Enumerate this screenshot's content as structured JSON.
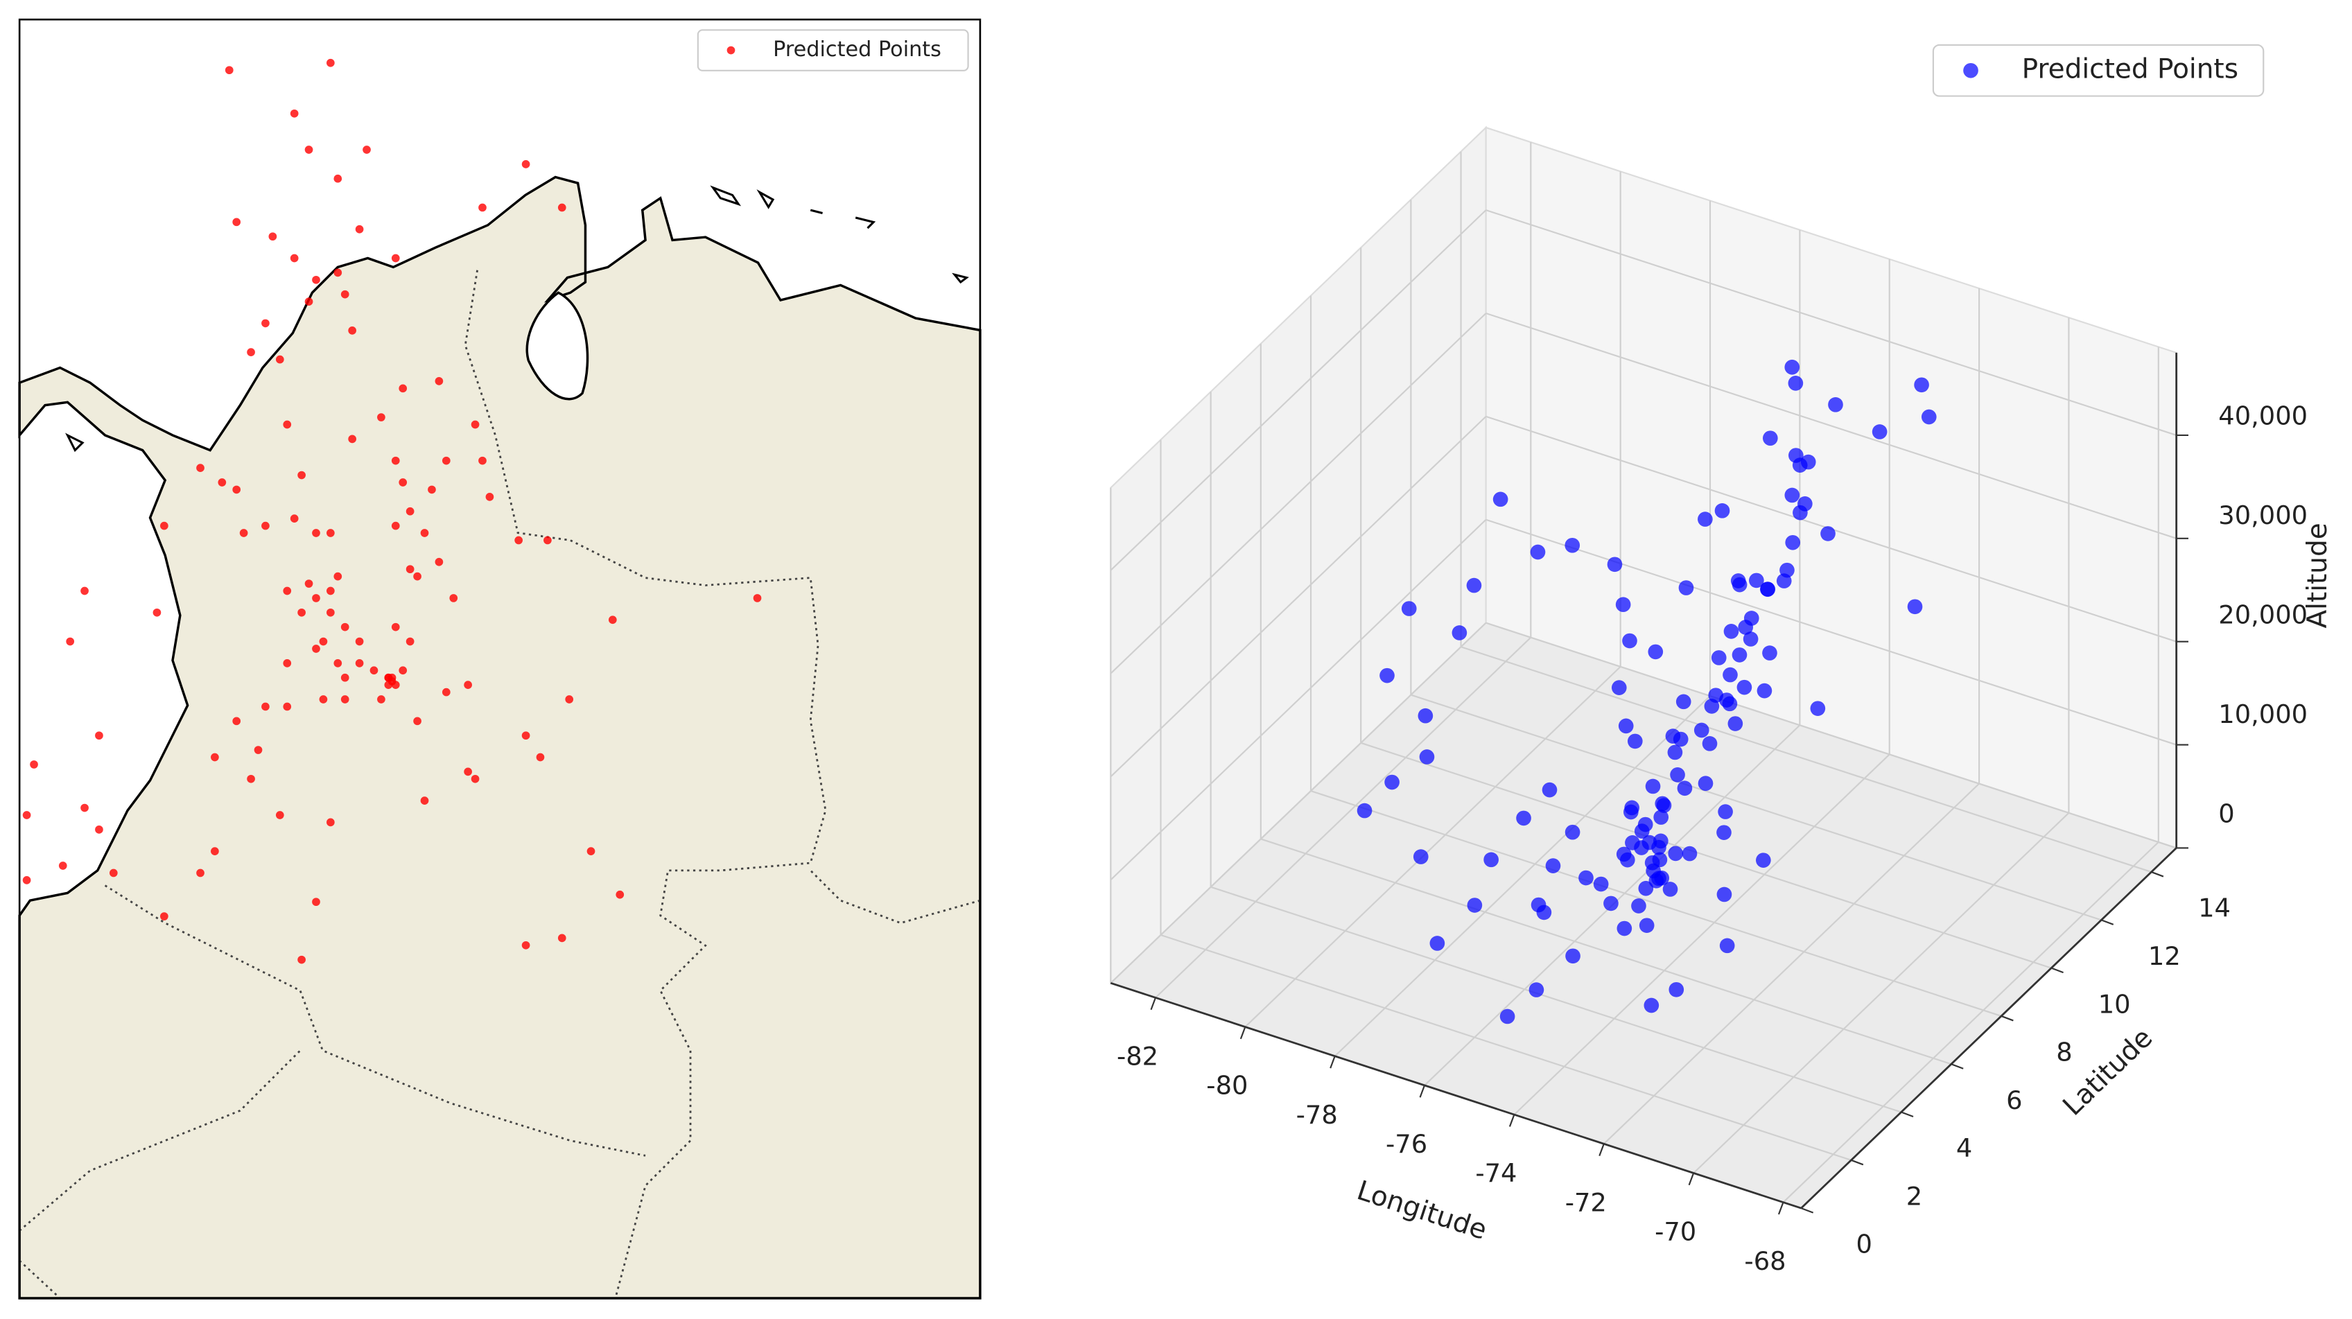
{
  "chart_data": [
    {
      "type": "map",
      "xlim": [
        -79,
        -65.72
      ],
      "ylim": [
        -2.98,
        14.7
      ],
      "legend": "upper right",
      "series": [
        {
          "name": "Predicted Points",
          "color": "#ff0000",
          "x": [
            -76.1,
            -74.7,
            -75.2,
            -75.0,
            -74.2,
            -74.6,
            -76.0,
            -75.5,
            -75.2,
            -74.3,
            -72.0,
            -72.6,
            -71.5,
            -74.6,
            -74.9,
            -75.0,
            -74.5,
            -74.4,
            -75.6,
            -75.8,
            -75.4,
            -73.8,
            -73.7,
            -73.2,
            -72.7,
            -75.3,
            -74.4,
            -74.0,
            -73.8,
            -73.1,
            -72.6,
            -76.5,
            -76.2,
            -75.1,
            -76.0,
            -73.7,
            -73.3,
            -73.6,
            -72.5,
            -77.0,
            -75.9,
            -75.6,
            -75.2,
            -74.9,
            -74.7,
            -73.8,
            -73.4,
            -72.1,
            -71.7,
            -73.2,
            -73.6,
            -73.5,
            -74.6,
            -75.0,
            -74.9,
            -74.7,
            -75.1,
            -74.7,
            -74.5,
            -74.8,
            -74.3,
            -75.3,
            -74.9,
            -74.6,
            -74.3,
            -74.5,
            -73.9,
            -74.1,
            -73.8,
            -73.7,
            -73.6,
            -73.0,
            -74.0,
            -74.5,
            -74.8,
            -73.9,
            -78.1,
            -78.3,
            -77.1,
            -75.3,
            -70.8,
            -68.8,
            -71.4,
            -73.5,
            -73.1,
            -72.8,
            -75.3,
            -75.6,
            -76.0,
            -76.3,
            -75.7,
            -75.8,
            -72.0,
            -71.8,
            -72.8,
            -72.7,
            -73.4,
            -74.7,
            -75.4,
            -76.3,
            -76.5,
            -78.8,
            -78.9,
            -78.1,
            -77.9,
            -77.9,
            -78.4,
            -78.9,
            -77.7,
            -77.0,
            -74.9,
            -71.1,
            -70.7,
            -72.0,
            -71.5,
            -75.1,
            -73.85,
            -73.8,
            -73.9,
            -73.85
          ],
          "values": [
            14.0,
            14.1,
            13.4,
            12.9,
            12.9,
            12.5,
            11.9,
            11.7,
            11.4,
            11.8,
            12.7,
            12.1,
            12.1,
            11.2,
            11.1,
            10.8,
            10.9,
            10.4,
            10.5,
            10.1,
            10.0,
            11.4,
            9.6,
            9.7,
            9.1,
            9.1,
            8.9,
            9.2,
            8.6,
            8.6,
            8.6,
            8.5,
            8.3,
            8.4,
            8.2,
            8.3,
            8.2,
            7.9,
            8.1,
            7.7,
            7.6,
            7.7,
            7.8,
            7.6,
            7.6,
            7.7,
            7.6,
            7.5,
            7.5,
            7.2,
            7.1,
            7.0,
            7.0,
            6.9,
            6.7,
            6.8,
            6.5,
            6.5,
            6.3,
            6.1,
            6.1,
            5.8,
            6.0,
            5.8,
            5.8,
            5.6,
            5.6,
            5.7,
            6.3,
            5.7,
            6.1,
            6.7,
            5.3,
            5.3,
            5.3,
            5.5,
            6.8,
            6.1,
            6.5,
            6.8,
            6.4,
            6.7,
            5.3,
            5.0,
            5.4,
            5.5,
            5.2,
            5.2,
            5.0,
            4.5,
            4.6,
            4.2,
            4.8,
            4.5,
            4.3,
            4.2,
            3.9,
            3.6,
            3.7,
            3.2,
            2.9,
            4.4,
            3.7,
            3.8,
            4.8,
            3.5,
            3.0,
            2.8,
            2.9,
            2.3,
            2.5,
            3.2,
            2.6,
            1.9,
            2.0,
            1.7,
            5.55,
            5.5,
            5.6,
            5.6
          ]
        }
      ]
    },
    {
      "type": "scatter3d",
      "xlabel": "Longitude",
      "ylabel": "Latitude",
      "zlabel": "Altitude",
      "xlim": [
        -83,
        -67.6
      ],
      "xticks": [
        -82,
        -80,
        -78,
        -76,
        -74,
        -72,
        -70,
        -68
      ],
      "ylim": [
        0,
        15
      ],
      "yticks": [
        0,
        2,
        4,
        6,
        8,
        10,
        12,
        14
      ],
      "zlim": [
        0,
        48000
      ],
      "zticks": [
        0,
        {
          "value": 10000,
          "label": "10,000"
        },
        {
          "value": 20000,
          "label": "20,000"
        },
        {
          "value": 30000,
          "label": "30,000"
        },
        {
          "value": 40000,
          "label": "40,000"
        }
      ],
      "grid": true,
      "legend": "upper right",
      "series": [
        {
          "name": "Predicted Points",
          "color": "#0000ff",
          "x": [
            -76.1,
            -74.7,
            -75.2,
            -75.0,
            -74.2,
            -74.6,
            -76.0,
            -75.5,
            -75.2,
            -74.3,
            -72.0,
            -72.6,
            -71.5,
            -74.6,
            -74.9,
            -75.0,
            -74.5,
            -74.4,
            -75.6,
            -75.8,
            -75.4,
            -73.8,
            -73.7,
            -73.2,
            -72.7,
            -75.3,
            -74.4,
            -74.0,
            -73.8,
            -73.1,
            -72.6,
            -76.5,
            -76.2,
            -75.1,
            -76.0,
            -73.7,
            -73.3,
            -73.6,
            -72.5,
            -77.0,
            -75.9,
            -75.6,
            -75.2,
            -74.9,
            -74.7,
            -73.8,
            -73.4,
            -72.1,
            -71.7,
            -73.2,
            -73.6,
            -73.5,
            -74.6,
            -75.0,
            -74.9,
            -74.7,
            -75.1,
            -74.7,
            -74.5,
            -74.8,
            -74.3,
            -75.3,
            -74.9,
            -74.6,
            -74.3,
            -74.5,
            -73.9,
            -74.1,
            -73.8,
            -73.7,
            -73.6,
            -73.0,
            -74.0,
            -74.5,
            -74.8,
            -73.9,
            -78.1,
            -78.3,
            -77.1,
            -75.3,
            -70.8,
            -68.8,
            -71.4,
            -73.5,
            -73.1,
            -72.8,
            -75.3,
            -75.6,
            -76.0,
            -76.3,
            -75.7,
            -75.8,
            -72.0,
            -71.8,
            -72.8,
            -72.7,
            -73.4,
            -74.7,
            -75.4,
            -76.3,
            -76.5,
            -78.8,
            -78.9,
            -78.1,
            -77.9,
            -77.9,
            -78.4,
            -78.9,
            -77.7,
            -77.0,
            -74.9,
            -71.1,
            -70.7,
            -72.0,
            -71.5,
            -75.1,
            -73.85,
            -73.8,
            -73.9,
            -73.85
          ],
          "y": [
            14.0,
            14.1,
            13.4,
            12.9,
            12.9,
            12.5,
            11.9,
            11.7,
            11.4,
            11.8,
            12.7,
            12.1,
            12.1,
            11.2,
            11.1,
            10.8,
            10.9,
            10.4,
            10.5,
            10.1,
            10.0,
            11.4,
            9.6,
            9.7,
            9.1,
            9.1,
            8.9,
            9.2,
            8.6,
            8.6,
            8.6,
            8.5,
            8.3,
            8.4,
            8.2,
            8.3,
            8.2,
            7.9,
            8.1,
            7.7,
            7.6,
            7.7,
            7.8,
            7.6,
            7.6,
            7.7,
            7.6,
            7.5,
            7.5,
            7.2,
            7.1,
            7.0,
            7.0,
            6.9,
            6.7,
            6.8,
            6.5,
            6.5,
            6.3,
            6.1,
            6.1,
            5.8,
            6.0,
            5.8,
            5.8,
            5.6,
            5.6,
            5.7,
            6.3,
            5.7,
            6.1,
            6.7,
            5.3,
            5.3,
            5.3,
            5.5,
            6.8,
            6.1,
            6.5,
            6.8,
            6.4,
            6.7,
            5.3,
            5.0,
            5.4,
            5.5,
            5.2,
            5.2,
            5.0,
            4.5,
            4.6,
            4.2,
            4.8,
            4.5,
            4.3,
            4.2,
            3.9,
            3.6,
            3.7,
            3.2,
            2.9,
            4.4,
            3.7,
            3.8,
            4.8,
            3.5,
            3.0,
            2.8,
            2.9,
            2.3,
            2.5,
            3.2,
            2.6,
            1.9,
            2.0,
            1.7,
            5.55,
            5.5,
            5.6,
            5.6
          ],
          "values": [
            30000,
            35000,
            38000,
            41000,
            26000,
            33000,
            28000,
            22000,
            19000,
            36000,
            44000,
            40000,
            43000,
            24000,
            21000,
            18000,
            15000,
            27000,
            31000,
            25000,
            12000,
            37000,
            29000,
            34000,
            39000,
            17000,
            23000,
            20000,
            32000,
            26000,
            42000,
            30000,
            27000,
            14000,
            24000,
            19000,
            28000,
            22000,
            35000,
            33000,
            21000,
            16000,
            25000,
            11000,
            18000,
            23000,
            30000,
            38000,
            45000,
            27000,
            20000,
            24000,
            13000,
            10000,
            9000,
            15000,
            8000,
            12000,
            11000,
            14000,
            9000,
            7000,
            10000,
            12000,
            8000,
            16000,
            13000,
            11000,
            22000,
            9000,
            18000,
            26000,
            6000,
            5000,
            7000,
            10000,
            38000,
            31000,
            35000,
            20000,
            29000,
            41000,
            16000,
            12000,
            14000,
            21000,
            9000,
            13000,
            17000,
            15000,
            11000,
            8000,
            19000,
            22000,
            17000,
            25000,
            12000,
            6000,
            9000,
            14000,
            10000,
            32000,
            27000,
            24000,
            30000,
            21000,
            19000,
            16000,
            13000,
            7000,
            5000,
            18000,
            15000,
            9000,
            11000,
            4000,
            12000,
            14000,
            10000,
            16000
          ]
        }
      ]
    }
  ]
}
